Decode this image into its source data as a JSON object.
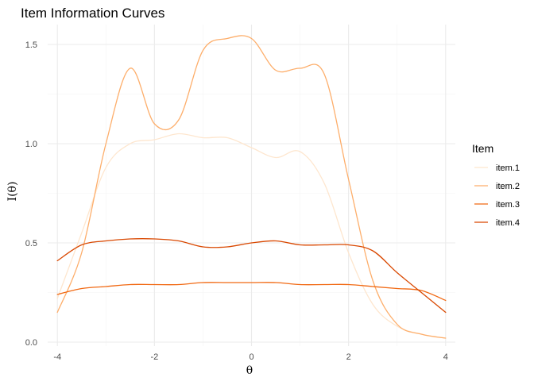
{
  "chart_data": {
    "type": "line",
    "title": "Item Information Curves",
    "xlabel": "θ",
    "ylabel": "I(θ)",
    "xlim": [
      -4.2,
      4.2
    ],
    "ylim": [
      -0.02,
      1.6
    ],
    "x_ticks": [
      -4,
      -2,
      0,
      2,
      4
    ],
    "x_tick_labels": [
      "-4",
      "-2",
      "0",
      "2",
      "4"
    ],
    "y_ticks": [
      0.0,
      0.5,
      1.0,
      1.5
    ],
    "y_tick_labels": [
      "0.0",
      "0.5",
      "1.0",
      "1.5"
    ],
    "grid": true,
    "legend_title": "Item",
    "legend_position": "right",
    "series": [
      {
        "name": "item.1",
        "color": "#fee6ce",
        "x": [
          -4,
          -3.5,
          -3,
          -2.5,
          -2,
          -1.5,
          -1,
          -0.5,
          0,
          0.5,
          1,
          1.5,
          2,
          2.5,
          3,
          3.5,
          4
        ],
        "y": [
          0.22,
          0.55,
          0.88,
          1.0,
          1.02,
          1.05,
          1.03,
          1.03,
          0.98,
          0.93,
          0.96,
          0.8,
          0.45,
          0.19,
          0.08,
          0.04,
          0.02
        ]
      },
      {
        "name": "item.2",
        "color": "#fdae6b",
        "x": [
          -4,
          -3.5,
          -3,
          -2.5,
          -2,
          -1.5,
          -1,
          -0.5,
          0,
          0.5,
          1,
          1.5,
          2,
          2.5,
          3,
          3.5,
          4
        ],
        "y": [
          0.15,
          0.45,
          1.0,
          1.38,
          1.1,
          1.12,
          1.47,
          1.53,
          1.53,
          1.37,
          1.38,
          1.35,
          0.82,
          0.31,
          0.09,
          0.04,
          0.02
        ]
      },
      {
        "name": "item.3",
        "color": "#f16913",
        "x": [
          -4,
          -3.5,
          -3,
          -2.5,
          -2,
          -1.5,
          -1,
          -0.5,
          0,
          0.5,
          1,
          1.5,
          2,
          2.5,
          3,
          3.5,
          4
        ],
        "y": [
          0.24,
          0.27,
          0.28,
          0.29,
          0.29,
          0.29,
          0.3,
          0.3,
          0.3,
          0.3,
          0.29,
          0.29,
          0.29,
          0.28,
          0.27,
          0.26,
          0.21
        ]
      },
      {
        "name": "item.4",
        "color": "#d94801",
        "x": [
          -4,
          -3.5,
          -3,
          -2.5,
          -2,
          -1.5,
          -1,
          -0.5,
          0,
          0.5,
          1,
          1.5,
          2,
          2.5,
          3,
          3.5,
          4
        ],
        "y": [
          0.41,
          0.49,
          0.51,
          0.52,
          0.52,
          0.51,
          0.48,
          0.48,
          0.5,
          0.51,
          0.49,
          0.49,
          0.49,
          0.46,
          0.35,
          0.25,
          0.15
        ]
      }
    ]
  }
}
